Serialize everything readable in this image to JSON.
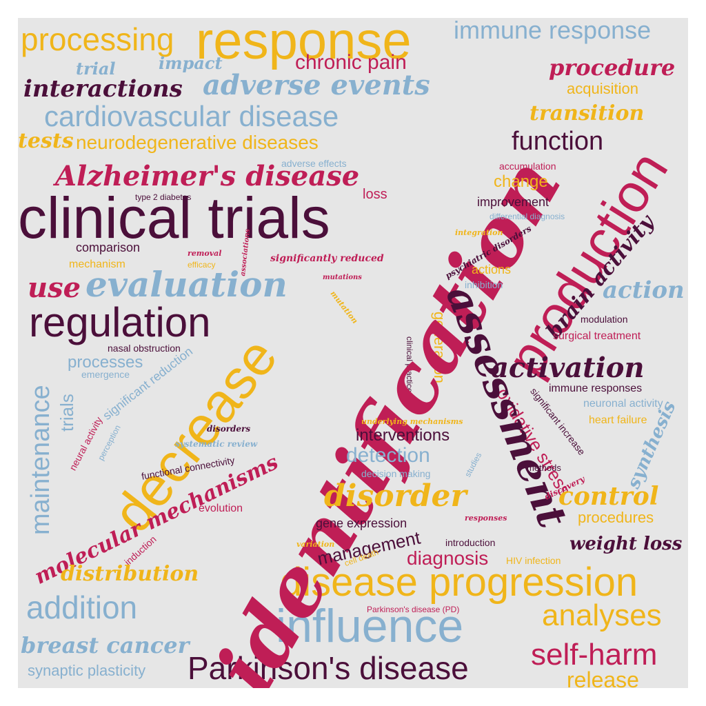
{
  "palette": {
    "background": "#e6e6e6",
    "red": "#bf1e56",
    "plum": "#4b0f3a",
    "gold": "#f0b51a",
    "blue": "#87b0cf"
  },
  "words": {
    "identification": "identification",
    "clinical_trials": "clinical trials",
    "response": "response",
    "production": "production",
    "decrease": "decrease",
    "influence": "influence",
    "assessment": "assessment",
    "disease_progression": "disease progression",
    "evaluation": "evaluation",
    "regulation": "regulation",
    "parkinsons_disease": "Parkinson's disease",
    "cardiovascular_disease": "cardiovascular disease",
    "processing": "processing",
    "alzheimers_disease": "Alzheimer's disease",
    "adverse_events": "adverse events",
    "interactions": "interactions",
    "immune_response": "immune response",
    "activation": "activation",
    "disorder": "disorder",
    "analyses": "analyses",
    "addition": "addition",
    "self_harm": "self-harm",
    "function": "function",
    "procedure": "procedure",
    "brain_activity": "brain activity",
    "maintenance": "maintenance",
    "control": "control",
    "molecular_mechanisms": "molecular mechanisms",
    "breast_cancer": "breast cancer",
    "transition": "transition",
    "use": "use",
    "action": "action",
    "neurodegenerative_diseases": "neurodegenerative diseases",
    "chronic_pain": "chronic pain",
    "tests": "tests",
    "distribution": "distribution",
    "management": "management",
    "interventions": "interventions",
    "detection": "detection",
    "diagnosis": "diagnosis",
    "synaptic_plasticity": "synaptic plasticity",
    "release": "release",
    "weight_loss": "weight loss",
    "procedures": "procedures",
    "oxidative_stress": "oxidative stress",
    "processes": "processes",
    "generation": "generation",
    "acquisition": "acquisition",
    "change": "change",
    "synthesis": "synthesis",
    "trial": "trial",
    "impact": "impact",
    "trials": "trials",
    "comparison": "comparison",
    "mechanism": "mechanism",
    "gene_expression": "gene expression",
    "improvement": "improvement",
    "significant_reduction": "significant reduction",
    "neuronal_activity": "neuronal activity",
    "heart_failure": "heart failure",
    "immune_responses": "immune responses",
    "surgical_treatment": "surgical treatment",
    "accumulation": "accumulation",
    "adverse_effects": "adverse effects",
    "modulation": "modulation",
    "actions": "actions",
    "loss": "loss",
    "significantly_reduced": "significantly reduced",
    "psychiatric_disorders": "psychiatric disorders",
    "evolution": "evolution",
    "significant_increase": "significant increase",
    "emergence": "emergence",
    "inhibition": "inhibition",
    "neural_activity": "neural activity",
    "systematic_review": "systematic review",
    "nasal_obstruction": "nasal obstruction",
    "functional_connectivity": "functional connectivity",
    "decision_making": "decision making",
    "introduction": "introduction",
    "hiv_infection": "HIV infection",
    "parkinsons_pd": "Parkinson's disease (PD)",
    "methods": "methods",
    "differential_diagnosis": "differential diagnosis",
    "type_2_diabetes": "type 2 diabetes",
    "removal": "removal",
    "efficacy": "efficacy",
    "associations": "associations",
    "mutations": "mutations",
    "mutation": "mutation",
    "integration": "integration",
    "clinical_practice": "clinical practice",
    "underlying_mechanisms": "underlying mechanisms",
    "disorders": "disorders",
    "perception": "perception",
    "studies": "studies",
    "discovery": "discovery",
    "responses": "responses",
    "induction": "induction",
    "variation": "variation",
    "cell_death": "cell death"
  }
}
